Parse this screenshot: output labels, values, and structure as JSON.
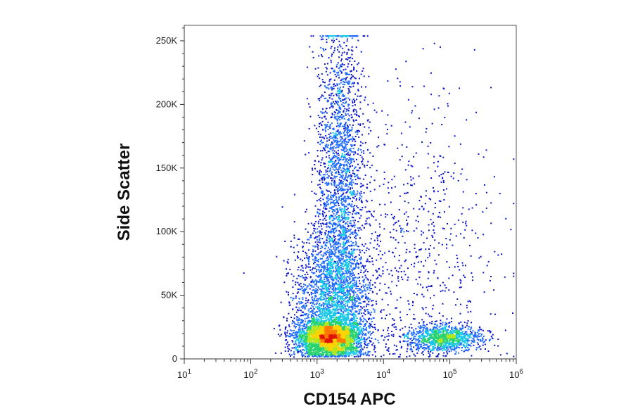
{
  "chart_data": {
    "type": "scatter",
    "style": "flow-cytometry density dot plot (pseudocolor: blue low, green, yellow, red high)",
    "xlabel": "CD154 APC",
    "ylabel": "Side Scatter",
    "x_scale": "log",
    "xlim": [
      10,
      1000000
    ],
    "ylim": [
      0,
      262144
    ],
    "grid": false,
    "legend": "none",
    "x_ticks": [
      {
        "value": 10,
        "base": "10",
        "exp": "1"
      },
      {
        "value": 100,
        "base": "10",
        "exp": "2"
      },
      {
        "value": 1000,
        "base": "10",
        "exp": "3"
      },
      {
        "value": 10000,
        "base": "10",
        "exp": "4"
      },
      {
        "value": 100000,
        "base": "10",
        "exp": "5"
      },
      {
        "value": 1000000,
        "base": "10",
        "exp": "6"
      }
    ],
    "y_ticks": [
      {
        "value": 0,
        "label": "0"
      },
      {
        "value": 50000,
        "label": "50K"
      },
      {
        "value": 100000,
        "label": "100K"
      },
      {
        "value": 150000,
        "label": "150K"
      },
      {
        "value": 200000,
        "label": "200K"
      },
      {
        "value": 250000,
        "label": "250K"
      }
    ],
    "density_colors": [
      "#0a14c8",
      "#1f6bff",
      "#19c8e6",
      "#28d26e",
      "#b4e61e",
      "#ffd200",
      "#ff7800",
      "#e1140a"
    ],
    "populations": [
      {
        "x_center": 1500,
        "y_center": 18000,
        "x_spread_decades": 0.25,
        "y_spread": 7000,
        "weight": 0.3
      },
      {
        "x_center": 1700,
        "y_center": 45000,
        "x_spread_decades": 0.28,
        "y_spread": 30000,
        "weight": 0.28
      },
      {
        "x_center": 2200,
        "y_center": 150000,
        "x_spread_decades": 0.18,
        "y_spread": 60000,
        "weight": 0.22
      },
      {
        "x_center": 80000,
        "y_center": 17000,
        "x_spread_decades": 0.28,
        "y_spread": 5000,
        "weight": 0.12
      },
      {
        "x_center": 30000,
        "y_center": 80000,
        "x_spread_decades": 0.6,
        "y_spread": 60000,
        "weight": 0.08
      }
    ]
  }
}
